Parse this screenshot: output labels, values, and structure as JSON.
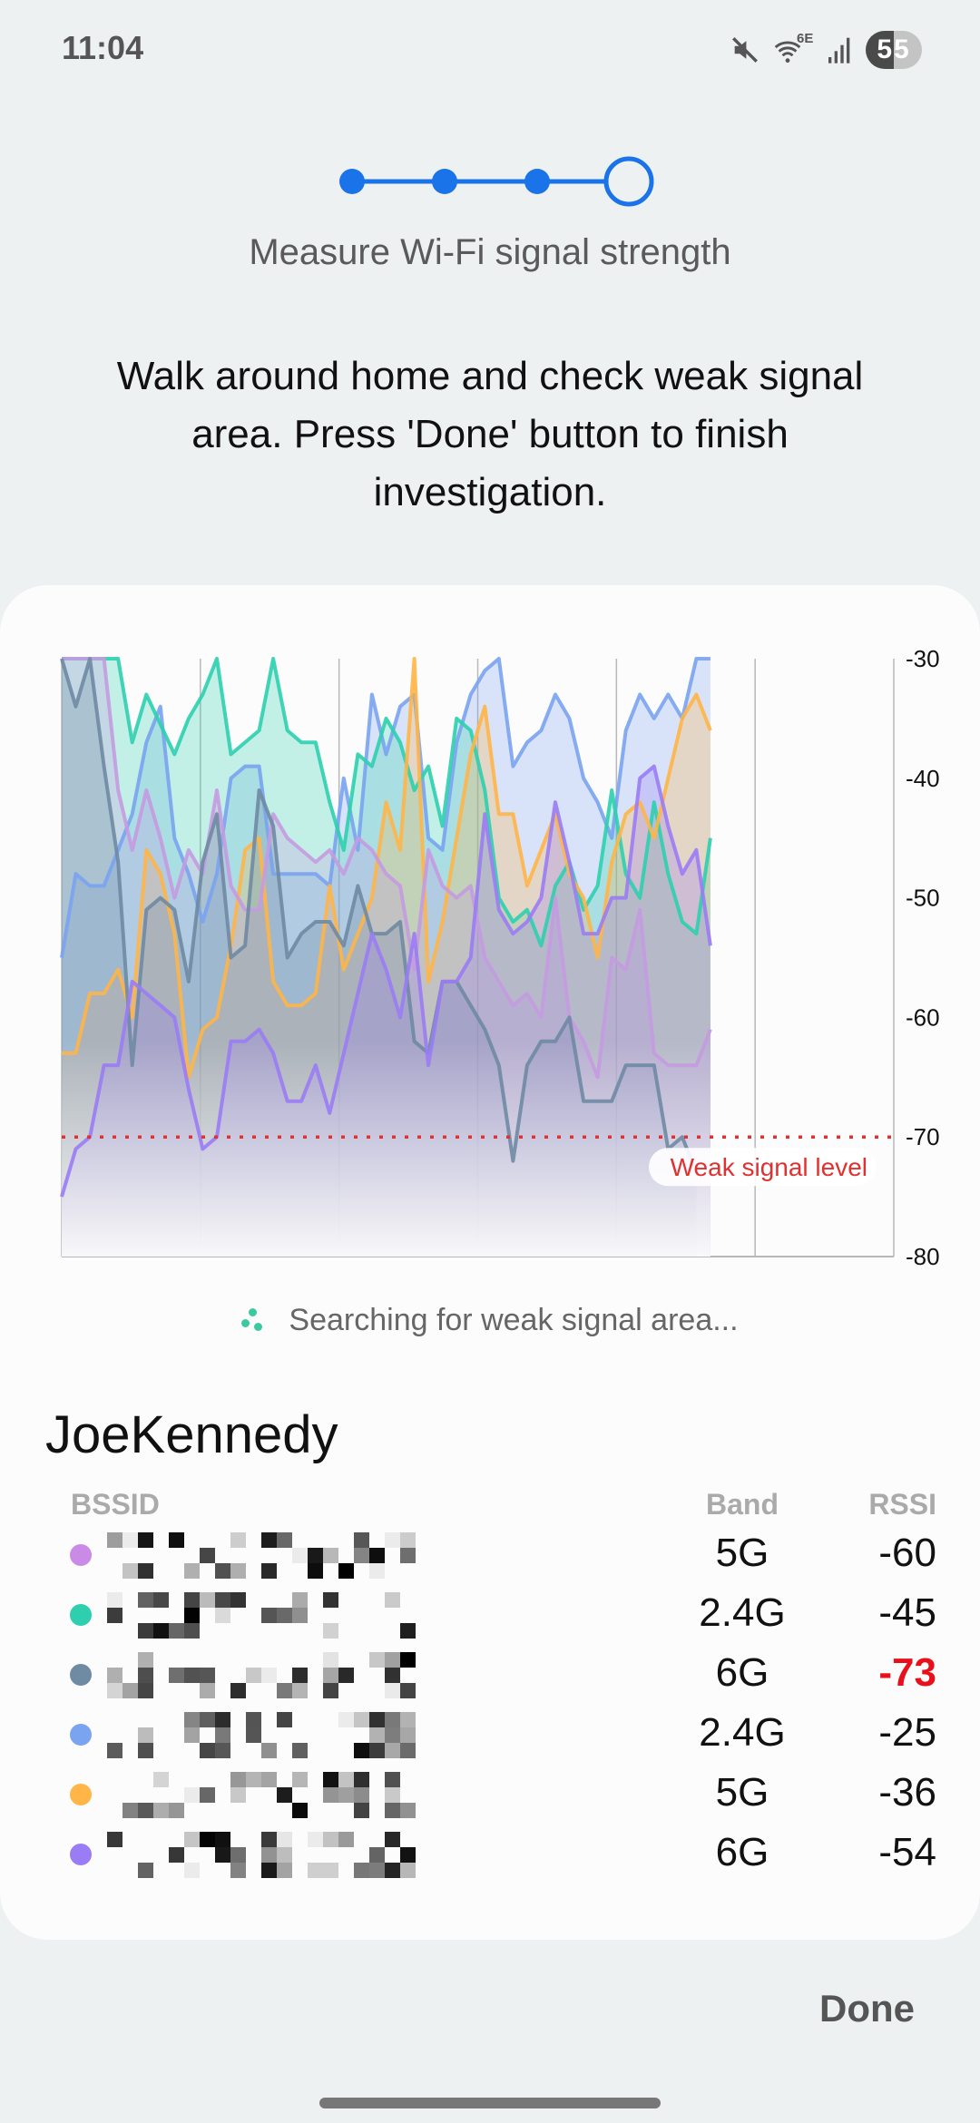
{
  "status_bar": {
    "time": "11:04",
    "battery": "55",
    "wifi_badge": "6E",
    "icons": [
      "mute-icon",
      "wifi-6e-icon",
      "cellular-signal-icon",
      "battery-icon"
    ]
  },
  "stepper": {
    "total_steps": 4,
    "current_step": 4
  },
  "title": "Measure Wi-Fi signal strength",
  "instruction": "Walk around home and check weak signal area. Press 'Done' button to finish investigation.",
  "chart_data": {
    "type": "area",
    "title": "",
    "xlabel": "",
    "ylabel": "",
    "ylim": [
      -80,
      -30
    ],
    "xlim": [
      0,
      59
    ],
    "y_ticks": [
      "-30",
      "-40",
      "-50",
      "-60",
      "-70",
      "-80"
    ],
    "grid": "vertical",
    "threshold": {
      "value": -70,
      "label": "Weak signal level",
      "color": "#e03030"
    },
    "series": [
      {
        "color": "#7aa3f0",
        "points": [
          [
            0,
            -55
          ],
          [
            1,
            -48
          ],
          [
            2,
            -49
          ],
          [
            3,
            -49
          ],
          [
            4,
            -46
          ],
          [
            5,
            -43
          ],
          [
            6,
            -37
          ],
          [
            7,
            -34
          ],
          [
            8,
            -45
          ],
          [
            9,
            -48
          ],
          [
            10,
            -52
          ],
          [
            11,
            -48
          ],
          [
            12,
            -40
          ],
          [
            13,
            -39
          ],
          [
            14,
            -39
          ],
          [
            15,
            -48
          ],
          [
            16,
            -48
          ],
          [
            17,
            -48
          ],
          [
            18,
            -48
          ],
          [
            19,
            -49
          ],
          [
            20,
            -40
          ],
          [
            21,
            -46
          ],
          [
            22,
            -33
          ],
          [
            23,
            -38
          ],
          [
            24,
            -34
          ],
          [
            25,
            -33
          ],
          [
            26,
            -45
          ],
          [
            27,
            -46
          ],
          [
            28,
            -37
          ],
          [
            29,
            -33
          ],
          [
            30,
            -31
          ],
          [
            31,
            -30
          ],
          [
            32,
            -39
          ],
          [
            33,
            -37
          ],
          [
            34,
            -36
          ],
          [
            35,
            -33
          ],
          [
            36,
            -35
          ],
          [
            37,
            -40
          ],
          [
            38,
            -42
          ],
          [
            39,
            -45
          ],
          [
            40,
            -36
          ],
          [
            41,
            -33
          ],
          [
            42,
            -35
          ],
          [
            43,
            -33
          ],
          [
            44,
            -35
          ],
          [
            45,
            -30
          ],
          [
            46,
            -30
          ]
        ]
      },
      {
        "color": "#2ecfae",
        "points": [
          [
            0,
            -30
          ],
          [
            4,
            -30
          ],
          [
            5,
            -37
          ],
          [
            6,
            -33
          ],
          [
            8,
            -38
          ],
          [
            9,
            -35
          ],
          [
            10,
            -33
          ],
          [
            11,
            -30
          ],
          [
            12,
            -38
          ],
          [
            14,
            -36
          ],
          [
            15,
            -30
          ],
          [
            16,
            -36
          ],
          [
            17,
            -37
          ],
          [
            18,
            -37
          ],
          [
            19,
            -42
          ],
          [
            20,
            -46
          ],
          [
            21,
            -38
          ],
          [
            22,
            -39
          ],
          [
            23,
            -35
          ],
          [
            24,
            -37
          ],
          [
            25,
            -41
          ],
          [
            26,
            -39
          ],
          [
            27,
            -44
          ],
          [
            28,
            -35
          ],
          [
            29,
            -36
          ],
          [
            30,
            -41
          ],
          [
            31,
            -50
          ],
          [
            32,
            -52
          ],
          [
            33,
            -51
          ],
          [
            34,
            -54
          ],
          [
            35,
            -49
          ],
          [
            36,
            -47
          ],
          [
            37,
            -51
          ],
          [
            38,
            -49
          ],
          [
            39,
            -41
          ],
          [
            40,
            -48
          ],
          [
            41,
            -50
          ],
          [
            42,
            -42
          ],
          [
            43,
            -48
          ],
          [
            44,
            -52
          ],
          [
            45,
            -53
          ],
          [
            46,
            -45
          ]
        ]
      },
      {
        "color": "#ffb547",
        "points": [
          [
            0,
            -63
          ],
          [
            1,
            -63
          ],
          [
            2,
            -58
          ],
          [
            3,
            -58
          ],
          [
            4,
            -56
          ],
          [
            5,
            -60
          ],
          [
            6,
            -46
          ],
          [
            7,
            -48
          ],
          [
            8,
            -53
          ],
          [
            9,
            -65
          ],
          [
            10,
            -61
          ],
          [
            11,
            -60
          ],
          [
            12,
            -54
          ],
          [
            13,
            -46
          ],
          [
            14,
            -45
          ],
          [
            15,
            -57
          ],
          [
            16,
            -59
          ],
          [
            17,
            -59
          ],
          [
            18,
            -58
          ],
          [
            19,
            -49
          ],
          [
            20,
            -56
          ],
          [
            21,
            -53
          ],
          [
            22,
            -50
          ],
          [
            23,
            -42
          ],
          [
            24,
            -46
          ],
          [
            25,
            -30
          ],
          [
            26,
            -57
          ],
          [
            27,
            -52
          ],
          [
            28,
            -45
          ],
          [
            29,
            -38
          ],
          [
            30,
            -34
          ],
          [
            31,
            -43
          ],
          [
            32,
            -43
          ],
          [
            33,
            -49
          ],
          [
            34,
            -46
          ],
          [
            35,
            -43
          ],
          [
            36,
            -48
          ],
          [
            37,
            -50
          ],
          [
            38,
            -55
          ],
          [
            39,
            -47
          ],
          [
            40,
            -43
          ],
          [
            41,
            -42
          ],
          [
            42,
            -45
          ],
          [
            43,
            -40
          ],
          [
            44,
            -35
          ],
          [
            45,
            -33
          ],
          [
            46,
            -36
          ]
        ]
      },
      {
        "color": "#c49be0",
        "points": [
          [
            0,
            -30
          ],
          [
            3,
            -30
          ],
          [
            4,
            -41
          ],
          [
            5,
            -46
          ],
          [
            6,
            -41
          ],
          [
            7,
            -45
          ],
          [
            8,
            -50
          ],
          [
            9,
            -46
          ],
          [
            10,
            -48
          ],
          [
            11,
            -41
          ],
          [
            12,
            -49
          ],
          [
            13,
            -51
          ],
          [
            14,
            -51
          ],
          [
            15,
            -43
          ],
          [
            16,
            -45
          ],
          [
            17,
            -46
          ],
          [
            18,
            -47
          ],
          [
            19,
            -46
          ],
          [
            20,
            -48
          ],
          [
            21,
            -45
          ],
          [
            22,
            -46
          ],
          [
            23,
            -48
          ],
          [
            24,
            -49
          ],
          [
            25,
            -56
          ],
          [
            26,
            -46
          ],
          [
            27,
            -49
          ],
          [
            28,
            -50
          ],
          [
            29,
            -49
          ],
          [
            30,
            -55
          ],
          [
            31,
            -57
          ],
          [
            32,
            -59
          ],
          [
            33,
            -58
          ],
          [
            34,
            -60
          ],
          [
            35,
            -50
          ],
          [
            36,
            -60
          ],
          [
            37,
            -62
          ],
          [
            38,
            -65
          ],
          [
            39,
            -55
          ],
          [
            40,
            -56
          ],
          [
            41,
            -51
          ],
          [
            42,
            -63
          ],
          [
            43,
            -64
          ],
          [
            44,
            -64
          ],
          [
            45,
            -64
          ],
          [
            46,
            -61
          ]
        ]
      },
      {
        "color": "#6f8aa3",
        "points": [
          [
            0,
            -30
          ],
          [
            1,
            -34
          ],
          [
            2,
            -30
          ],
          [
            3,
            -39
          ],
          [
            4,
            -47
          ],
          [
            5,
            -64
          ],
          [
            6,
            -51
          ],
          [
            7,
            -50
          ],
          [
            8,
            -51
          ],
          [
            9,
            -57
          ],
          [
            10,
            -47
          ],
          [
            11,
            -43
          ],
          [
            12,
            -55
          ],
          [
            13,
            -54
          ],
          [
            14,
            -41
          ],
          [
            15,
            -44
          ],
          [
            16,
            -55
          ],
          [
            17,
            -53
          ],
          [
            18,
            -52
          ],
          [
            19,
            -52
          ],
          [
            20,
            -54
          ],
          [
            21,
            -49
          ],
          [
            22,
            -53
          ],
          [
            23,
            -53
          ],
          [
            24,
            -52
          ],
          [
            25,
            -62
          ],
          [
            26,
            -63
          ],
          [
            27,
            -57
          ],
          [
            28,
            -57
          ],
          [
            29,
            -59
          ],
          [
            30,
            -61
          ],
          [
            31,
            -64
          ],
          [
            32,
            -72
          ],
          [
            33,
            -64
          ],
          [
            34,
            -62
          ],
          [
            35,
            -62
          ],
          [
            36,
            -60
          ],
          [
            37,
            -67
          ],
          [
            38,
            -67
          ],
          [
            39,
            -67
          ],
          [
            40,
            -64
          ],
          [
            41,
            -64
          ],
          [
            42,
            -64
          ],
          [
            43,
            -71
          ],
          [
            44,
            -70
          ],
          [
            45,
            -73
          ]
        ]
      },
      {
        "color": "#9a7cf4",
        "points": [
          [
            0,
            -75
          ],
          [
            1,
            -71
          ],
          [
            2,
            -70
          ],
          [
            3,
            -64
          ],
          [
            4,
            -64
          ],
          [
            5,
            -57
          ],
          [
            6,
            -58
          ],
          [
            7,
            -59
          ],
          [
            8,
            -60
          ],
          [
            9,
            -66
          ],
          [
            10,
            -71
          ],
          [
            11,
            -70
          ],
          [
            12,
            -62
          ],
          [
            13,
            -62
          ],
          [
            14,
            -61
          ],
          [
            15,
            -63
          ],
          [
            16,
            -67
          ],
          [
            17,
            -67
          ],
          [
            18,
            -64
          ],
          [
            19,
            -68
          ],
          [
            20,
            -63
          ],
          [
            21,
            -58
          ],
          [
            22,
            -53
          ],
          [
            23,
            -56
          ],
          [
            24,
            -60
          ],
          [
            25,
            -53
          ],
          [
            26,
            -64
          ],
          [
            27,
            -57
          ],
          [
            28,
            -57
          ],
          [
            29,
            -55
          ],
          [
            30,
            -43
          ],
          [
            31,
            -51
          ],
          [
            32,
            -53
          ],
          [
            33,
            -52
          ],
          [
            34,
            -50
          ],
          [
            35,
            -42
          ],
          [
            36,
            -47
          ],
          [
            37,
            -53
          ],
          [
            38,
            -53
          ],
          [
            39,
            -50
          ],
          [
            40,
            -50
          ],
          [
            41,
            -40
          ],
          [
            42,
            -39
          ],
          [
            43,
            -44
          ],
          [
            44,
            -48
          ],
          [
            45,
            -46
          ],
          [
            46,
            -54
          ]
        ]
      }
    ]
  },
  "searching_text": "Searching for weak signal area...",
  "network": {
    "ssid": "JoeKennedy",
    "headers": {
      "bssid": "BSSID",
      "band": "Band",
      "rssi": "RSSI"
    },
    "rows": [
      {
        "color": "#c98be6",
        "band": "5G",
        "rssi": "-60",
        "weak": false
      },
      {
        "color": "#2ecfae",
        "band": "2.4G",
        "rssi": "-45",
        "weak": false
      },
      {
        "color": "#6f8aa3",
        "band": "6G",
        "rssi": "-73",
        "weak": true
      },
      {
        "color": "#7aa3f0",
        "band": "2.4G",
        "rssi": "-25",
        "weak": false
      },
      {
        "color": "#ffb547",
        "band": "5G",
        "rssi": "-36",
        "weak": false
      },
      {
        "color": "#9a7cf4",
        "band": "6G",
        "rssi": "-54",
        "weak": false
      }
    ],
    "weak_color": "#e8101a"
  },
  "done_label": "Done"
}
